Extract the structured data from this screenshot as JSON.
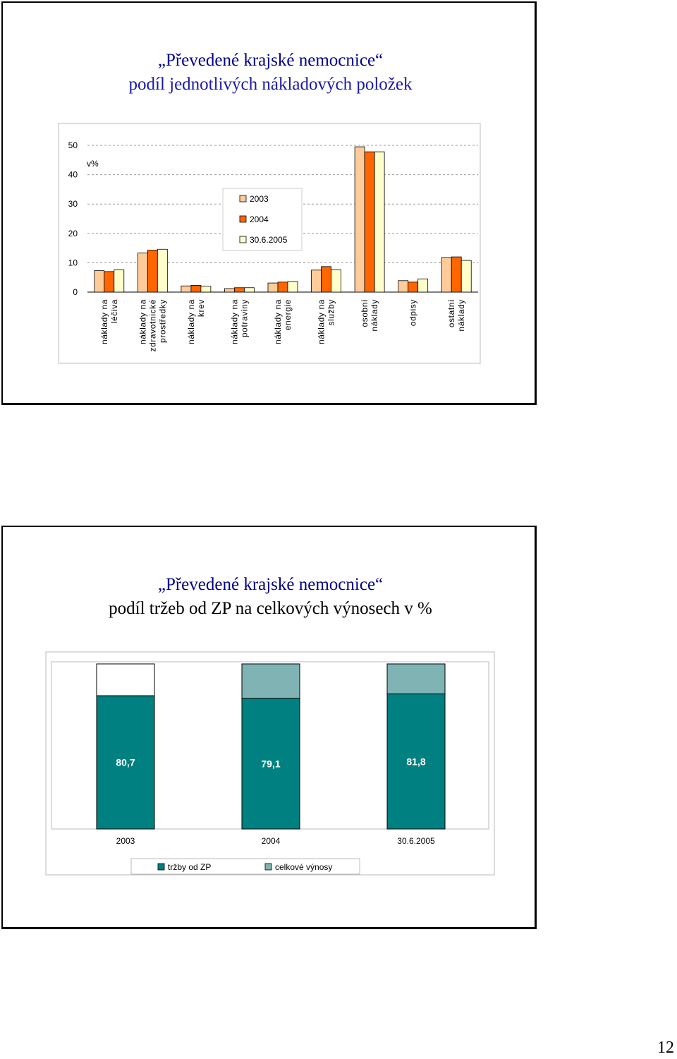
{
  "slide1": {
    "title": "„Převedené krajské nemocnice“",
    "subtitle": "podíl jednotlivých nákladových položek"
  },
  "slide2": {
    "title": "„Převedené krajské nemocnice“",
    "subtitle": "podíl tržeb od ZP na celkových výnosech v %"
  },
  "page_number": "12",
  "chart_data": [
    {
      "type": "bar",
      "ylabel": "v%",
      "ylim": [
        0,
        50
      ],
      "yticks": [
        "0",
        "10",
        "20",
        "30",
        "40",
        "50"
      ],
      "categories": [
        [
          "náklady na",
          "léčiva"
        ],
        [
          "náklady na",
          "zdravotnické",
          "prostředky"
        ],
        [
          "náklady na",
          "krev"
        ],
        [
          "náklady na",
          "potraviny"
        ],
        [
          "náklady na",
          "energie"
        ],
        [
          "náklady na",
          "služby"
        ],
        [
          "osobní",
          "náklady"
        ],
        [
          "odpisy"
        ],
        [
          "ostatní",
          "náklady"
        ]
      ],
      "series": [
        {
          "name": "2003",
          "color": "#ffcc99",
          "values": [
            7.3,
            13.3,
            2.1,
            1.2,
            3.1,
            7.5,
            49.5,
            3.9,
            11.8
          ]
        },
        {
          "name": "2004",
          "color": "#ff6600",
          "values": [
            7.0,
            14.3,
            2.3,
            1.5,
            3.4,
            8.7,
            47.8,
            3.4,
            12.0
          ]
        },
        {
          "name": "30.6.2005",
          "color": "#ffffcc",
          "values": [
            7.6,
            14.6,
            2.0,
            1.5,
            3.6,
            7.6,
            47.8,
            4.5,
            10.8
          ]
        }
      ],
      "legend_position": "center"
    },
    {
      "type": "bar",
      "stacked": true,
      "categories": [
        "2003",
        "2004",
        "30.6.2005"
      ],
      "series": [
        {
          "name": "tržby od ZP",
          "color": "#008080",
          "values": [
            80.7,
            79.1,
            81.8
          ],
          "labels": [
            "80,7",
            "79,1",
            "81,8"
          ]
        },
        {
          "name": "celkové výnosy",
          "color": "#80b3b3",
          "values": [
            19.3,
            20.9,
            18.2
          ]
        }
      ],
      "ylim": [
        0,
        100
      ],
      "legend_position": "bottom"
    }
  ]
}
